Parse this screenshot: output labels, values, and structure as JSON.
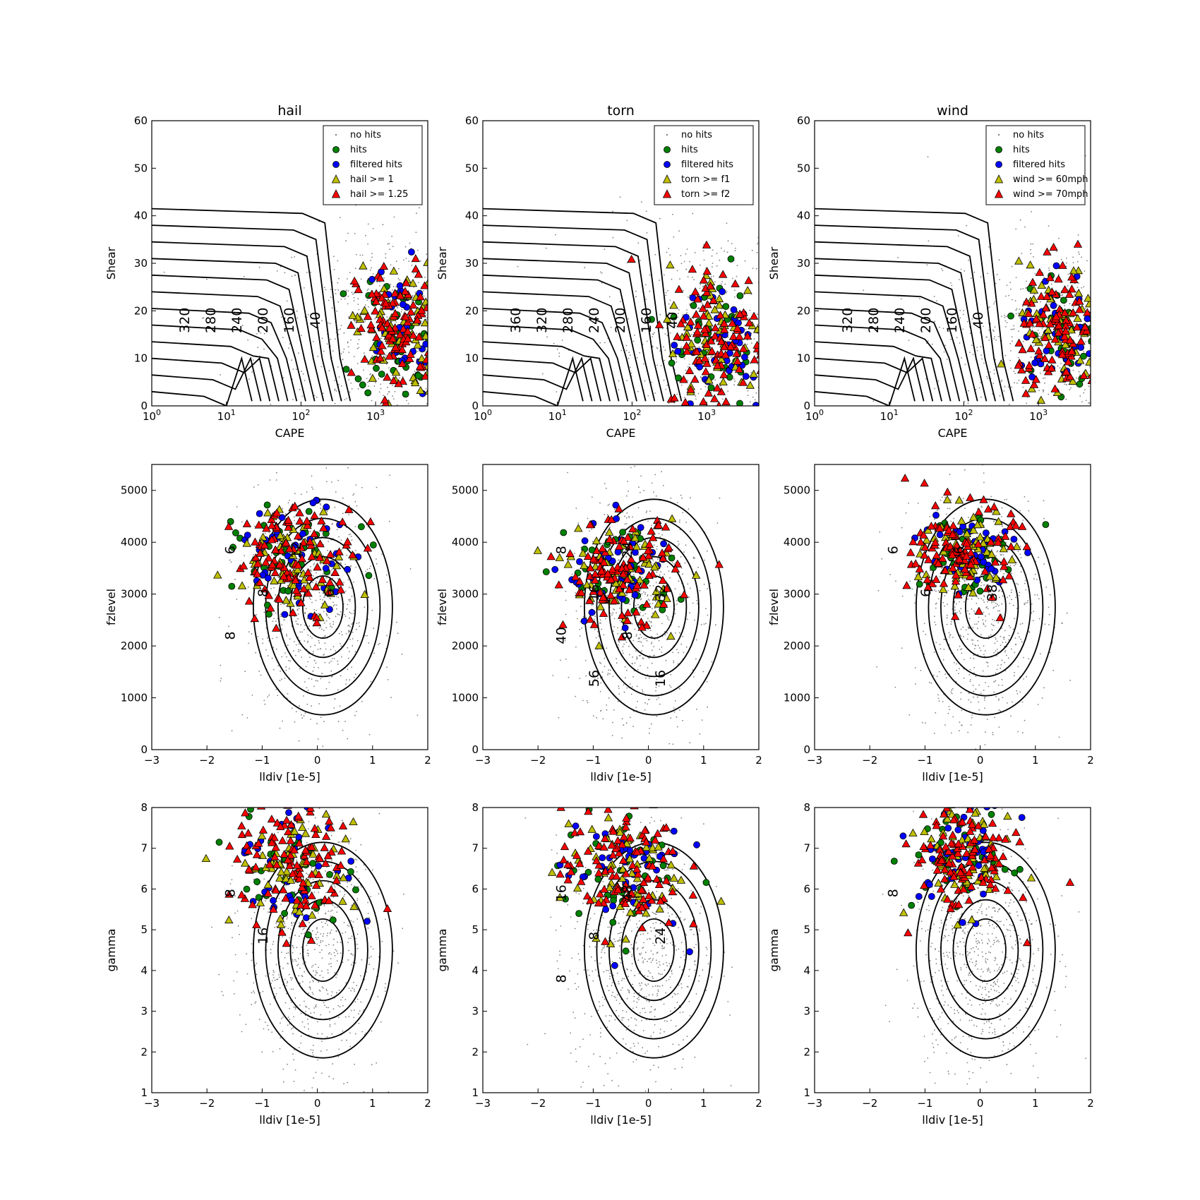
{
  "figure": {
    "rows": 3,
    "cols": 3
  },
  "colors": {
    "no_hits": "#808080",
    "hits": "#008000",
    "filtered_hits": "#0000ff",
    "thresh1": "#bfbf00",
    "thresh2": "#ff0000",
    "contour": "#000000"
  },
  "chart_data": [
    {
      "id": "hail-cape",
      "type": "scatter",
      "title": "hail",
      "xlabel": "CAPE",
      "ylabel": "Shear",
      "xscale": "log",
      "xlim": [
        1,
        5000
      ],
      "ylim": [
        0,
        60
      ],
      "xticks": [
        1,
        10,
        100,
        1000
      ],
      "yticks": [
        0,
        10,
        20,
        30,
        40,
        50,
        60
      ],
      "legend": {
        "placement": "top-right",
        "entries": [
          "no hits",
          "hits",
          "filtered hits",
          "hail >= 1",
          "hail >= 1.25"
        ]
      },
      "contour_labels": [
        "320",
        "280",
        "240",
        "200",
        "160",
        "40"
      ],
      "cluster": {
        "cx": 2000,
        "cy": 16,
        "sx": 0.28,
        "sy": 7
      }
    },
    {
      "id": "torn-cape",
      "type": "scatter",
      "title": "torn",
      "xlabel": "CAPE",
      "ylabel": "Shear",
      "xscale": "log",
      "xlim": [
        1,
        5000
      ],
      "ylim": [
        0,
        60
      ],
      "xticks": [
        1,
        10,
        100,
        1000
      ],
      "yticks": [
        0,
        10,
        20,
        30,
        40,
        50,
        60
      ],
      "legend": {
        "placement": "top-right",
        "entries": [
          "no hits",
          "hits",
          "filtered hits",
          "torn >= f1",
          "torn >= f2"
        ]
      },
      "contour_labels": [
        "360",
        "320",
        "280",
        "240",
        "200",
        "160",
        "40"
      ],
      "cluster": {
        "cx": 1500,
        "cy": 14,
        "sx": 0.35,
        "sy": 8
      }
    },
    {
      "id": "wind-cape",
      "type": "scatter",
      "title": "wind",
      "xlabel": "CAPE",
      "ylabel": "Shear",
      "xscale": "log",
      "xlim": [
        1,
        5000
      ],
      "ylim": [
        0,
        60
      ],
      "xticks": [
        1,
        10,
        100,
        1000
      ],
      "yticks": [
        0,
        10,
        20,
        30,
        40,
        50,
        60
      ],
      "legend": {
        "placement": "top-right",
        "entries": [
          "no hits",
          "hits",
          "filtered hits",
          "wind >= 60mph",
          "wind >= 70mph"
        ]
      },
      "contour_labels": [
        "320",
        "280",
        "240",
        "200",
        "160",
        "40"
      ],
      "cluster": {
        "cx": 2000,
        "cy": 15,
        "sx": 0.28,
        "sy": 7
      }
    },
    {
      "id": "hail-fz",
      "type": "scatter",
      "title": "",
      "xlabel": "lldiv [1e-5]",
      "ylabel": "fzlevel",
      "xscale": "linear",
      "xlim": [
        -3,
        2
      ],
      "ylim": [
        0,
        5500
      ],
      "xticks": [
        -3,
        -2,
        -1,
        0,
        1,
        2
      ],
      "yticks": [
        0,
        1000,
        2000,
        3000,
        4000,
        5000
      ],
      "contour_labels": [
        "6",
        "8",
        "12",
        "6",
        "8"
      ],
      "cluster": {
        "cx": -0.4,
        "cy": 3700,
        "sx": 0.55,
        "sy": 500
      }
    },
    {
      "id": "torn-fz",
      "type": "scatter",
      "title": "",
      "xlabel": "lldiv [1e-5]",
      "ylabel": "fzlevel",
      "xscale": "linear",
      "xlim": [
        -3,
        2
      ],
      "ylim": [
        0,
        5500
      ],
      "xticks": [
        -3,
        -2,
        -1,
        0,
        1,
        2
      ],
      "yticks": [
        0,
        1000,
        2000,
        3000,
        4000,
        5000
      ],
      "contour_labels": [
        "8",
        "16",
        "24",
        "32",
        "40",
        "56",
        "8",
        "16"
      ],
      "cluster": {
        "cx": -0.5,
        "cy": 3400,
        "sx": 0.5,
        "sy": 500
      }
    },
    {
      "id": "wind-fz",
      "type": "scatter",
      "title": "",
      "xlabel": "lldiv [1e-5]",
      "ylabel": "fzlevel",
      "xscale": "linear",
      "xlim": [
        -3,
        2
      ],
      "ylim": [
        0,
        5500
      ],
      "xticks": [
        -3,
        -2,
        -1,
        0,
        1,
        2
      ],
      "yticks": [
        0,
        1000,
        2000,
        3000,
        4000,
        5000
      ],
      "contour_labels": [
        "6",
        "6",
        "6",
        "38"
      ],
      "cluster": {
        "cx": -0.3,
        "cy": 3800,
        "sx": 0.45,
        "sy": 450
      }
    },
    {
      "id": "hail-gamma",
      "type": "scatter",
      "title": "",
      "xlabel": "lldiv [1e-5]",
      "ylabel": "gamma",
      "xscale": "linear",
      "xlim": [
        -3,
        2
      ],
      "ylim": [
        1,
        8
      ],
      "xticks": [
        -3,
        -2,
        -1,
        0,
        1,
        2
      ],
      "yticks": [
        1,
        2,
        3,
        4,
        5,
        6,
        7,
        8
      ],
      "contour_labels": [
        "8",
        "16"
      ],
      "cluster": {
        "cx": -0.4,
        "cy": 6.6,
        "sx": 0.55,
        "sy": 0.8
      }
    },
    {
      "id": "torn-gamma",
      "type": "scatter",
      "title": "",
      "xlabel": "lldiv [1e-5]",
      "ylabel": "gamma",
      "xscale": "linear",
      "xlim": [
        -3,
        2
      ],
      "ylim": [
        1,
        8
      ],
      "xticks": [
        -3,
        -2,
        -1,
        0,
        1,
        2
      ],
      "yticks": [
        1,
        2,
        3,
        4,
        5,
        6,
        7,
        8
      ],
      "contour_labels": [
        "16",
        "8",
        "48",
        "24",
        "8"
      ],
      "cluster": {
        "cx": -0.5,
        "cy": 6.5,
        "sx": 0.55,
        "sy": 0.8
      }
    },
    {
      "id": "wind-gamma",
      "type": "scatter",
      "title": "",
      "xlabel": "lldiv [1e-5]",
      "ylabel": "gamma",
      "xscale": "linear",
      "xlim": [
        -3,
        2
      ],
      "ylim": [
        1,
        8
      ],
      "xticks": [
        -3,
        -2,
        -1,
        0,
        1,
        2
      ],
      "yticks": [
        1,
        2,
        3,
        4,
        5,
        6,
        7,
        8
      ],
      "contour_labels": [
        "8"
      ],
      "cluster": {
        "cx": -0.3,
        "cy": 6.8,
        "sx": 0.45,
        "sy": 0.7
      }
    }
  ]
}
